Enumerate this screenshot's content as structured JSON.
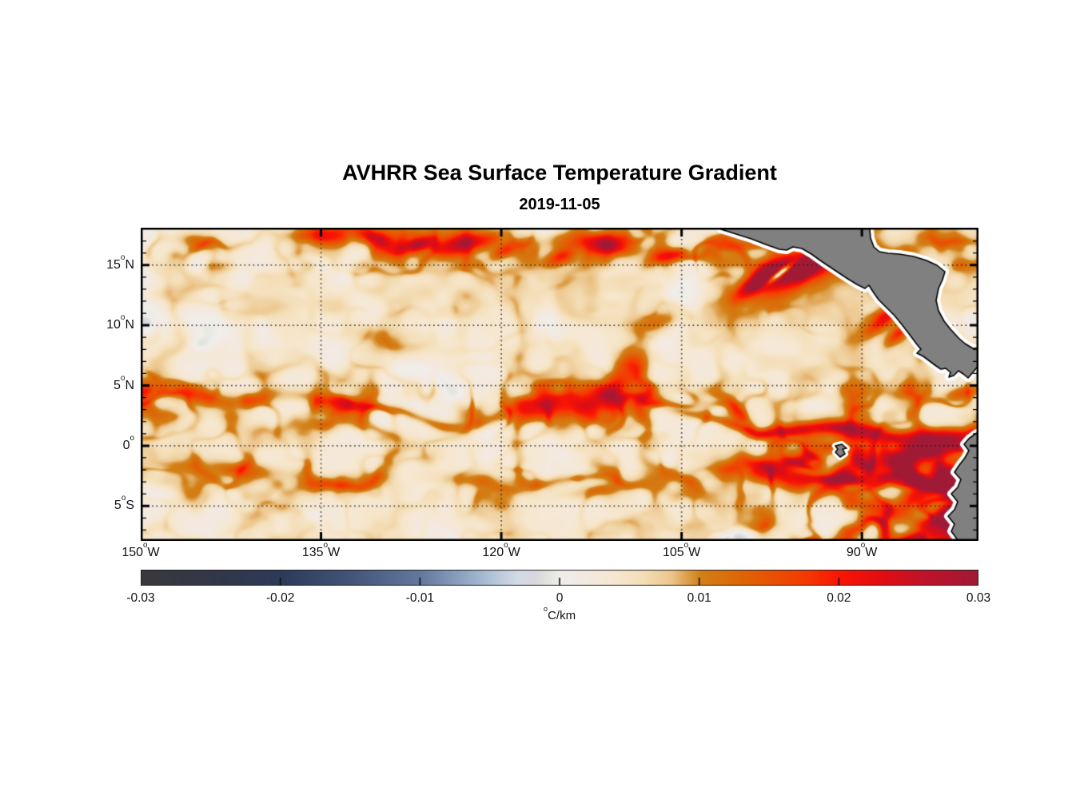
{
  "chart": {
    "title": "AVHRR Sea Surface Temperature Gradient",
    "subtitle": "2019-11-05"
  },
  "chart_data": {
    "type": "heatmap",
    "title": "AVHRR Sea Surface Temperature Gradient",
    "subtitle_date": "2019-11-05",
    "projection": "equirectangular (eastern tropical Pacific)",
    "x_axis": {
      "name": "longitude",
      "range_deg_east": [
        -150,
        -80.3
      ],
      "tick_values": [
        -150,
        -135,
        -120,
        -105,
        -90
      ],
      "deg_symbol": "o",
      "tick_labels": [
        {
          "value": "150",
          "hem": "W"
        },
        {
          "value": "135",
          "hem": "W"
        },
        {
          "value": "120",
          "hem": "W"
        },
        {
          "value": "105",
          "hem": "W"
        },
        {
          "value": "90",
          "hem": "W"
        }
      ]
    },
    "y_axis": {
      "name": "latitude",
      "range_deg_north": [
        -7.9,
        18.1
      ],
      "tick_values": [
        15,
        10,
        5,
        0,
        -5
      ],
      "minor_tick_step_deg": 1,
      "deg_symbol": "o",
      "tick_labels": [
        {
          "value": "15",
          "hem": "N"
        },
        {
          "value": "10",
          "hem": "N"
        },
        {
          "value": "5",
          "hem": "N"
        },
        {
          "value": "0",
          "hem": ""
        },
        {
          "value": "5",
          "hem": "S"
        }
      ]
    },
    "grid": {
      "on": true,
      "style": "dotted",
      "color": "#1c1c1c"
    },
    "colorbar": {
      "orientation": "horizontal",
      "location": "below plot",
      "range": [
        -0.03,
        0.03
      ],
      "tick_values": [
        -0.03,
        -0.02,
        -0.01,
        0,
        0.01,
        0.02,
        0.03
      ],
      "tick_labels": [
        "-0.03",
        "-0.02",
        "-0.01",
        "0",
        "0.01",
        "0.02",
        "0.03"
      ],
      "unit": {
        "deg": "o",
        "text": "C/km"
      },
      "colormap_stops": [
        [
          -0.03,
          "#3a3a3c"
        ],
        [
          -0.025,
          "#333748"
        ],
        [
          -0.02,
          "#2d3b5a"
        ],
        [
          -0.015,
          "#435578"
        ],
        [
          -0.01,
          "#64799e"
        ],
        [
          -0.007,
          "#8ea4c2"
        ],
        [
          -0.005,
          "#b0c2d8"
        ],
        [
          -0.003,
          "#d4dbe6"
        ],
        [
          -0.0018,
          "#dad6e1"
        ],
        [
          -0.0008,
          "#e3e6de"
        ],
        [
          0.0,
          "#efeeea"
        ],
        [
          0.002,
          "#f3e9e1"
        ],
        [
          0.004,
          "#f6e7cf"
        ],
        [
          0.006,
          "#f4deb7"
        ],
        [
          0.008,
          "#ecc68c"
        ],
        [
          0.01,
          "#d28118"
        ],
        [
          0.0125,
          "#dc6a07"
        ],
        [
          0.015,
          "#e95304"
        ],
        [
          0.0175,
          "#f43b02"
        ],
        [
          0.02,
          "#fa1604"
        ],
        [
          0.023,
          "#e30d12"
        ],
        [
          0.026,
          "#c1122a"
        ],
        [
          0.03,
          "#a01a36"
        ]
      ]
    },
    "land": {
      "color": "#808080",
      "coastline_color": "#000000",
      "coastal_mask_color": "#ffffff",
      "regions_visible": [
        "Mexico and Central America",
        "northwestern South America (Ecuador / Peru coast)",
        "Galapagos Islands"
      ]
    },
    "ocean_background": "mostly weak positive gradient ~0.003-0.006 C/km (cream) with near-zero pale patches",
    "features": [
      {
        "name": "zonal front band along ~2-4N (North Equatorial Front, tropical instability waves)",
        "approx_gradient_C_per_km": 0.012,
        "extent": "150W to ~98W"
      },
      {
        "name": "intense equatorial front ~0-2N east of 105W toward Galapagos",
        "approx_gradient_C_per_km": 0.02
      },
      {
        "name": "front band near 15-17N across basin",
        "approx_gradient_C_per_km": 0.013
      },
      {
        "name": "Gulf of Tehuantepec wind-jet front (~15N, 96W)",
        "approx_gradient_C_per_km": 0.03
      },
      {
        "name": "Papagayo jet front (~10.5N, 88W)",
        "approx_gradient_C_per_km": 0.016
      },
      {
        "name": "equatorial / Peru-Ecuador coastal fronts in southeast corner (0-8S, 86-80W)",
        "approx_gradient_C_per_km": 0.026
      },
      {
        "name": "weak front band near 2-3S",
        "approx_gradient_C_per_km": 0.008
      }
    ]
  }
}
